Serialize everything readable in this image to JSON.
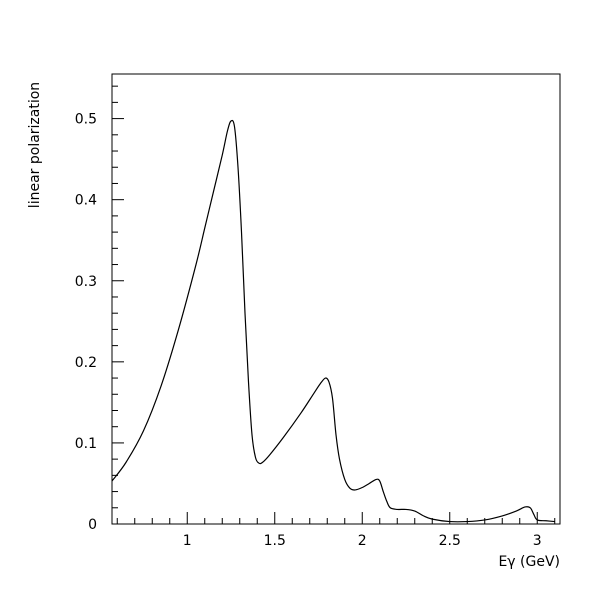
{
  "chart_data": {
    "type": "line",
    "title": "",
    "xlabel": "Eγ (GeV)",
    "ylabel": "linear polarization",
    "xlim": [
      0.57,
      3.13
    ],
    "ylim": [
      0,
      0.555
    ],
    "x_ticks": [
      {
        "value": 1,
        "label": "1"
      },
      {
        "value": 1.5,
        "label": "1.5"
      },
      {
        "value": 2,
        "label": "2"
      },
      {
        "value": 2.5,
        "label": "2.5"
      },
      {
        "value": 3,
        "label": "3"
      }
    ],
    "y_ticks": [
      {
        "value": 0,
        "label": "0"
      },
      {
        "value": 0.1,
        "label": "0.1"
      },
      {
        "value": 0.2,
        "label": "0.2"
      },
      {
        "value": 0.3,
        "label": "0.3"
      },
      {
        "value": 0.4,
        "label": "0.4"
      },
      {
        "value": 0.5,
        "label": "0.5"
      }
    ],
    "grid": false,
    "legend": "none",
    "series": [
      {
        "color": "#000000",
        "x": [
          0.57,
          0.65,
          0.75,
          0.85,
          0.95,
          1.05,
          1.1,
          1.15,
          1.2,
          1.23,
          1.25,
          1.27,
          1.29,
          1.31,
          1.33,
          1.35,
          1.37,
          1.39,
          1.41,
          1.43,
          1.47,
          1.55,
          1.65,
          1.72,
          1.76,
          1.79,
          1.81,
          1.83,
          1.85,
          1.87,
          1.9,
          1.93,
          1.96,
          2.0,
          2.04,
          2.08,
          2.1,
          2.12,
          2.14,
          2.16,
          2.2,
          2.25,
          2.3,
          2.35,
          2.4,
          2.5,
          2.6,
          2.7,
          2.8,
          2.88,
          2.93,
          2.96,
          2.98,
          3.0,
          3.05,
          3.1
        ],
        "y": [
          0.053,
          0.076,
          0.115,
          0.17,
          0.24,
          0.32,
          0.365,
          0.41,
          0.455,
          0.485,
          0.497,
          0.49,
          0.44,
          0.36,
          0.26,
          0.175,
          0.11,
          0.082,
          0.075,
          0.076,
          0.085,
          0.107,
          0.137,
          0.16,
          0.173,
          0.18,
          0.175,
          0.155,
          0.11,
          0.08,
          0.055,
          0.044,
          0.042,
          0.045,
          0.05,
          0.055,
          0.053,
          0.04,
          0.028,
          0.02,
          0.018,
          0.018,
          0.016,
          0.01,
          0.006,
          0.003,
          0.003,
          0.005,
          0.01,
          0.016,
          0.021,
          0.02,
          0.012,
          0.005,
          0.004,
          0.003
        ]
      }
    ]
  }
}
